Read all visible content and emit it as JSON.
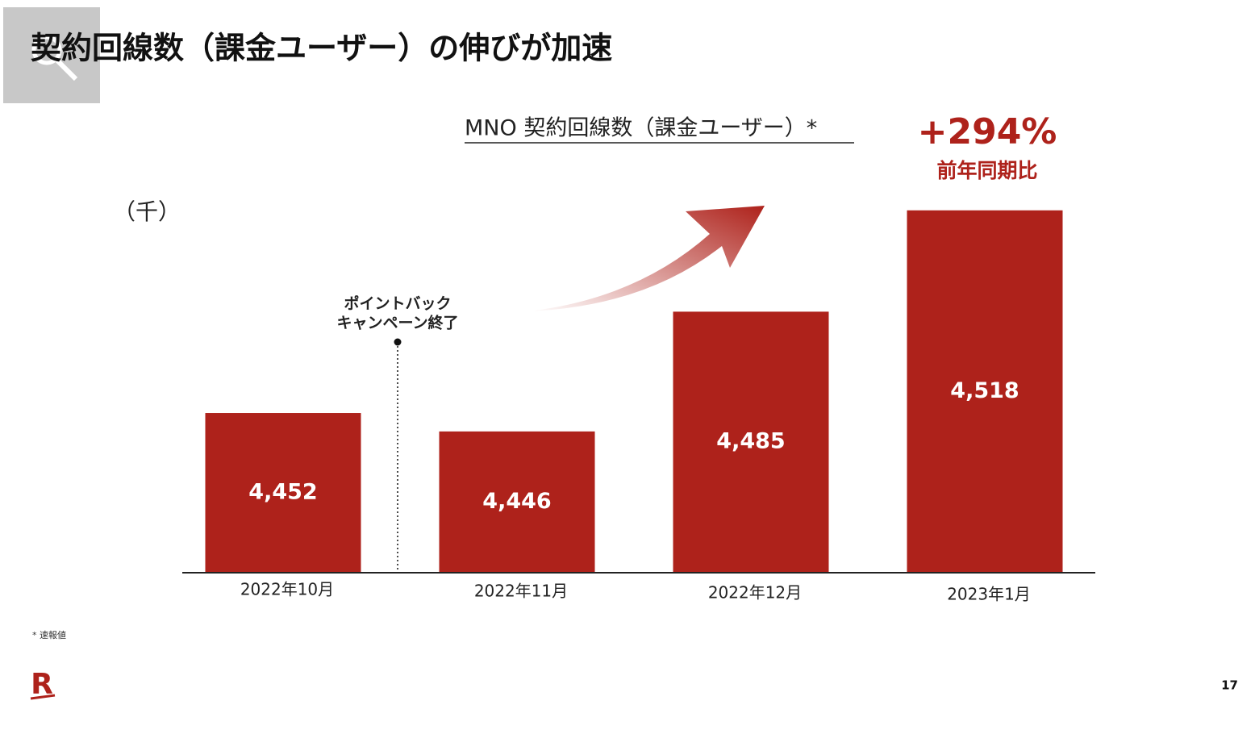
{
  "chart_data": {
    "type": "bar",
    "title": "契約回線数（課金ユーザー）の伸びが加速",
    "subtitle": "MNO 契約回線数（課金ユーザー）*",
    "unit_label": "（千）",
    "annotation": [
      "ポイントバック",
      "キャンペーン終了"
    ],
    "growth": "+294%",
    "growth_label": "前年同期比",
    "footnote": "* 速報値",
    "page_number": "17",
    "logo": "R",
    "categories": [
      "2022年10月",
      "2022年11月",
      "2022年12月",
      "2023年1月"
    ],
    "values": [
      4452,
      4446,
      4485,
      4518
    ],
    "value_labels": [
      "4,452",
      "4,446",
      "4,485",
      "4,518"
    ],
    "color": "#ae221b",
    "ylim": [
      4400,
      4540
    ]
  }
}
